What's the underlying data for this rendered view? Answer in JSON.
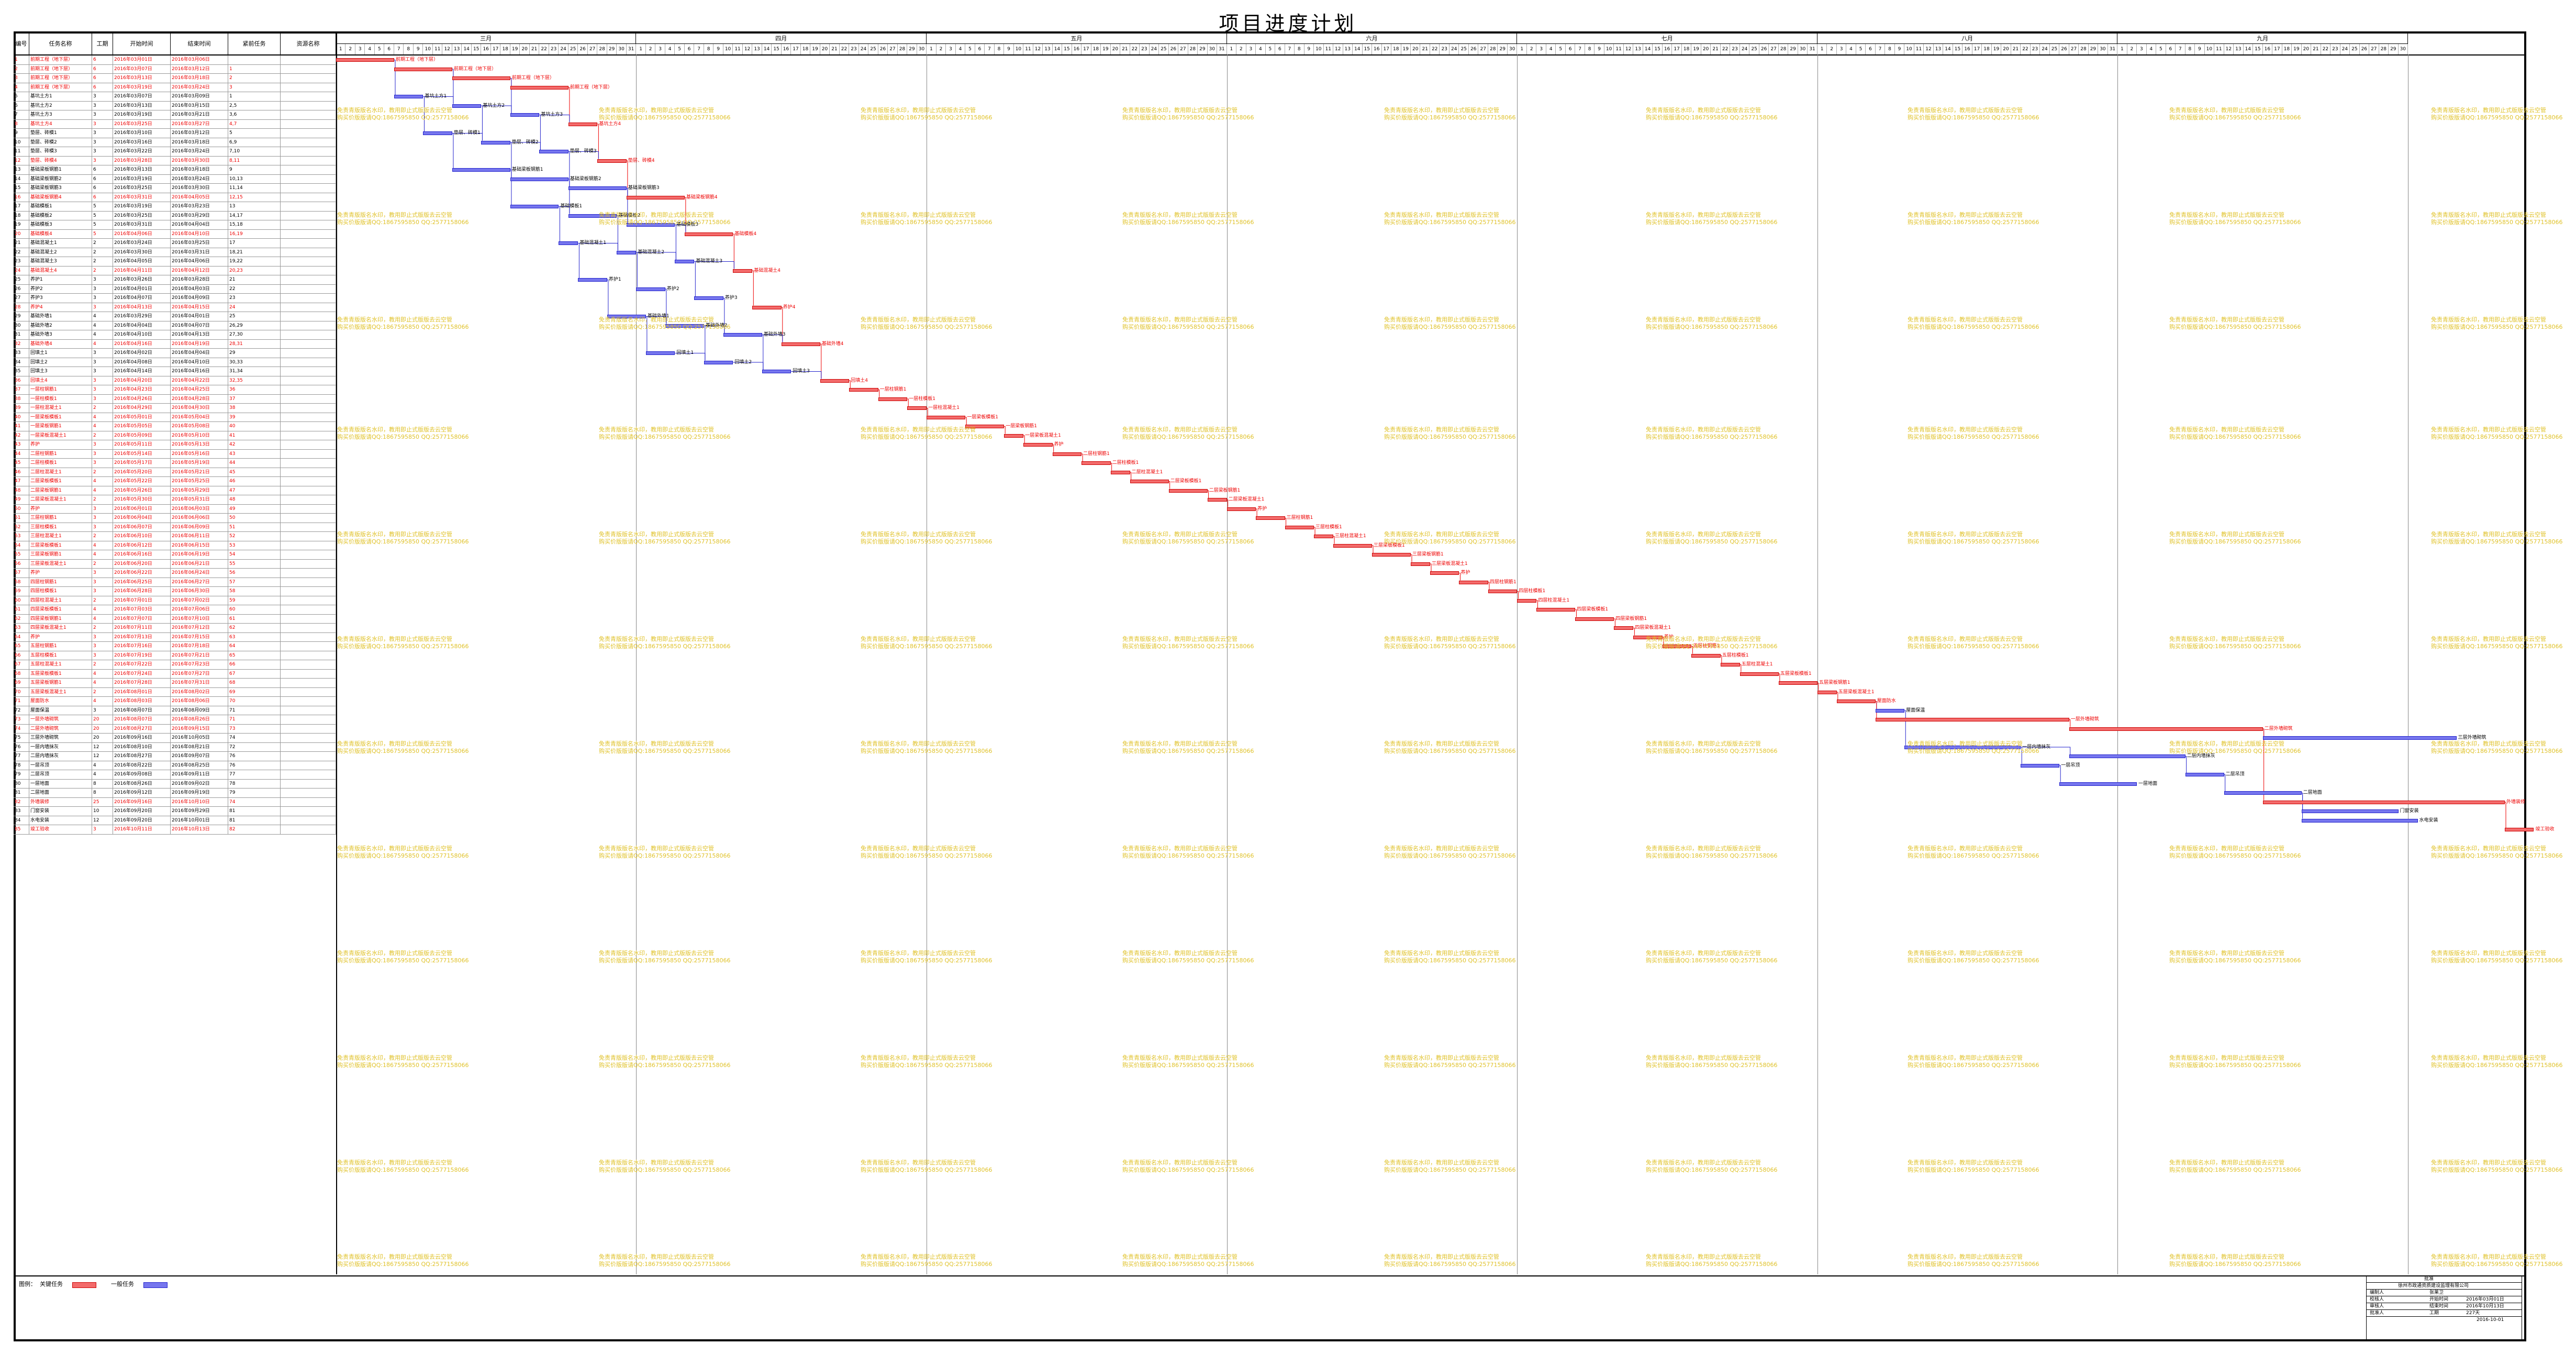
{
  "title": "项目进度计划",
  "columns": [
    "编号",
    "任务名称",
    "工期",
    "开始时间",
    "结束时间",
    "紧前任务",
    "资源名称"
  ],
  "months": [
    "三月",
    "四月",
    "五月",
    "六月",
    "七月",
    "八月",
    "九月"
  ],
  "month_days": [
    31,
    30,
    31,
    30,
    31,
    31,
    30
  ],
  "watermark_line1": "免责青版版名水印，教用即止式版版去云空管",
  "watermark_line2": "购买价版版请QQ:1867595850 QQ:2577158066",
  "tasks": [
    {
      "id": "1",
      "name": "前期工程（地下层）",
      "dur": "6",
      "start": "2016年03月01日",
      "end": "2016年03月06日",
      "pred": "",
      "key": true
    },
    {
      "id": "2",
      "name": "前期工程（地下层）",
      "dur": "6",
      "start": "2016年03月07日",
      "end": "2016年03月12日",
      "pred": "1",
      "key": true
    },
    {
      "id": "3",
      "name": "前期工程（地下层）",
      "dur": "6",
      "start": "2016年03月13日",
      "end": "2016年03月18日",
      "pred": "2",
      "key": true
    },
    {
      "id": "4",
      "name": "前期工程（地下层）",
      "dur": "6",
      "start": "2016年03月19日",
      "end": "2016年03月24日",
      "pred": "3",
      "key": true
    },
    {
      "id": "5",
      "name": "基坑土方1",
      "dur": "3",
      "start": "2016年03月07日",
      "end": "2016年03月09日",
      "pred": "1",
      "key": false
    },
    {
      "id": "6",
      "name": "基坑土方2",
      "dur": "3",
      "start": "2016年03月13日",
      "end": "2016年03月15日",
      "pred": "2,5",
      "key": false
    },
    {
      "id": "7",
      "name": "基坑土方3",
      "dur": "3",
      "start": "2016年03月19日",
      "end": "2016年03月21日",
      "pred": "3,6",
      "key": false
    },
    {
      "id": "8",
      "name": "基坑土方4",
      "dur": "3",
      "start": "2016年03月25日",
      "end": "2016年03月27日",
      "pred": "4,7",
      "key": true
    },
    {
      "id": "9",
      "name": "垫层、砖模1",
      "dur": "3",
      "start": "2016年03月10日",
      "end": "2016年03月12日",
      "pred": "5",
      "key": false
    },
    {
      "id": "10",
      "name": "垫层、砖模2",
      "dur": "3",
      "start": "2016年03月16日",
      "end": "2016年03月18日",
      "pred": "6,9",
      "key": false
    },
    {
      "id": "11",
      "name": "垫层、砖模3",
      "dur": "3",
      "start": "2016年03月22日",
      "end": "2016年03月24日",
      "pred": "7,10",
      "key": false
    },
    {
      "id": "12",
      "name": "垫层、砖模4",
      "dur": "3",
      "start": "2016年03月28日",
      "end": "2016年03月30日",
      "pred": "8,11",
      "key": true
    },
    {
      "id": "13",
      "name": "基础梁板钢筋1",
      "dur": "6",
      "start": "2016年03月13日",
      "end": "2016年03月18日",
      "pred": "9",
      "key": false
    },
    {
      "id": "14",
      "name": "基础梁板钢筋2",
      "dur": "6",
      "start": "2016年03月19日",
      "end": "2016年03月24日",
      "pred": "10,13",
      "key": false
    },
    {
      "id": "15",
      "name": "基础梁板钢筋3",
      "dur": "6",
      "start": "2016年03月25日",
      "end": "2016年03月30日",
      "pred": "11,14",
      "key": false
    },
    {
      "id": "16",
      "name": "基础梁板钢筋4",
      "dur": "6",
      "start": "2016年03月31日",
      "end": "2016年04月05日",
      "pred": "12,15",
      "key": true
    },
    {
      "id": "17",
      "name": "基础模板1",
      "dur": "5",
      "start": "2016年03月19日",
      "end": "2016年03月23日",
      "pred": "13",
      "key": false
    },
    {
      "id": "18",
      "name": "基础模板2",
      "dur": "5",
      "start": "2016年03月25日",
      "end": "2016年03月29日",
      "pred": "14,17",
      "key": false
    },
    {
      "id": "19",
      "name": "基础模板3",
      "dur": "5",
      "start": "2016年03月31日",
      "end": "2016年04月04日",
      "pred": "15,18",
      "key": false
    },
    {
      "id": "20",
      "name": "基础模板4",
      "dur": "5",
      "start": "2016年04月06日",
      "end": "2016年04月10日",
      "pred": "16,19",
      "key": true
    },
    {
      "id": "21",
      "name": "基础混凝土1",
      "dur": "2",
      "start": "2016年03月24日",
      "end": "2016年03月25日",
      "pred": "17",
      "key": false
    },
    {
      "id": "22",
      "name": "基础混凝土2",
      "dur": "2",
      "start": "2016年03月30日",
      "end": "2016年03月31日",
      "pred": "18,21",
      "key": false
    },
    {
      "id": "23",
      "name": "基础混凝土3",
      "dur": "2",
      "start": "2016年04月05日",
      "end": "2016年04月06日",
      "pred": "19,22",
      "key": false
    },
    {
      "id": "24",
      "name": "基础混凝土4",
      "dur": "2",
      "start": "2016年04月11日",
      "end": "2016年04月12日",
      "pred": "20,23",
      "key": true
    },
    {
      "id": "25",
      "name": "养护1",
      "dur": "3",
      "start": "2016年03月26日",
      "end": "2016年03月28日",
      "pred": "21",
      "key": false
    },
    {
      "id": "26",
      "name": "养护2",
      "dur": "3",
      "start": "2016年04月01日",
      "end": "2016年04月03日",
      "pred": "22",
      "key": false
    },
    {
      "id": "27",
      "name": "养护3",
      "dur": "3",
      "start": "2016年04月07日",
      "end": "2016年04月09日",
      "pred": "23",
      "key": false
    },
    {
      "id": "28",
      "name": "养护4",
      "dur": "3",
      "start": "2016年04月13日",
      "end": "2016年04月15日",
      "pred": "24",
      "key": true
    },
    {
      "id": "29",
      "name": "基础外墙1",
      "dur": "4",
      "start": "2016年03月29日",
      "end": "2016年04月01日",
      "pred": "25",
      "key": false
    },
    {
      "id": "30",
      "name": "基础外墙2",
      "dur": "4",
      "start": "2016年04月04日",
      "end": "2016年04月07日",
      "pred": "26,29",
      "key": false
    },
    {
      "id": "31",
      "name": "基础外墙3",
      "dur": "4",
      "start": "2016年04月10日",
      "end": "2016年04月13日",
      "pred": "27,30",
      "key": false
    },
    {
      "id": "32",
      "name": "基础外墙4",
      "dur": "4",
      "start": "2016年04月16日",
      "end": "2016年04月19日",
      "pred": "28,31",
      "key": true
    },
    {
      "id": "33",
      "name": "回填土1",
      "dur": "3",
      "start": "2016年04月02日",
      "end": "2016年04月04日",
      "pred": "29",
      "key": false
    },
    {
      "id": "34",
      "name": "回填土2",
      "dur": "3",
      "start": "2016年04月08日",
      "end": "2016年04月10日",
      "pred": "30,33",
      "key": false
    },
    {
      "id": "35",
      "name": "回填土3",
      "dur": "3",
      "start": "2016年04月14日",
      "end": "2016年04月16日",
      "pred": "31,34",
      "key": false
    },
    {
      "id": "36",
      "name": "回填土4",
      "dur": "3",
      "start": "2016年04月20日",
      "end": "2016年04月22日",
      "pred": "32,35",
      "key": true
    },
    {
      "id": "37",
      "name": "一层柱钢筋1",
      "dur": "3",
      "start": "2016年04月23日",
      "end": "2016年04月25日",
      "pred": "36",
      "key": true
    },
    {
      "id": "38",
      "name": "一层柱模板1",
      "dur": "3",
      "start": "2016年04月26日",
      "end": "2016年04月28日",
      "pred": "37",
      "key": true
    },
    {
      "id": "39",
      "name": "一层柱混凝土1",
      "dur": "2",
      "start": "2016年04月29日",
      "end": "2016年04月30日",
      "pred": "38",
      "key": true
    },
    {
      "id": "40",
      "name": "一层梁板模板1",
      "dur": "4",
      "start": "2016年05月01日",
      "end": "2016年05月04日",
      "pred": "39",
      "key": true
    },
    {
      "id": "41",
      "name": "一层梁板钢筋1",
      "dur": "4",
      "start": "2016年05月05日",
      "end": "2016年05月08日",
      "pred": "40",
      "key": true
    },
    {
      "id": "42",
      "name": "一层梁板混凝土1",
      "dur": "2",
      "start": "2016年05月09日",
      "end": "2016年05月10日",
      "pred": "41",
      "key": true
    },
    {
      "id": "43",
      "name": "养护",
      "dur": "3",
      "start": "2016年05月11日",
      "end": "2016年05月13日",
      "pred": "42",
      "key": true
    },
    {
      "id": "44",
      "name": "二层柱钢筋1",
      "dur": "3",
      "start": "2016年05月14日",
      "end": "2016年05月16日",
      "pred": "43",
      "key": true
    },
    {
      "id": "45",
      "name": "二层柱模板1",
      "dur": "3",
      "start": "2016年05月17日",
      "end": "2016年05月19日",
      "pred": "44",
      "key": true
    },
    {
      "id": "46",
      "name": "二层柱混凝土1",
      "dur": "2",
      "start": "2016年05月20日",
      "end": "2016年05月21日",
      "pred": "45",
      "key": true
    },
    {
      "id": "47",
      "name": "二层梁板模板1",
      "dur": "4",
      "start": "2016年05月22日",
      "end": "2016年05月25日",
      "pred": "46",
      "key": true
    },
    {
      "id": "48",
      "name": "二层梁板钢筋1",
      "dur": "4",
      "start": "2016年05月26日",
      "end": "2016年05月29日",
      "pred": "47",
      "key": true
    },
    {
      "id": "49",
      "name": "二层梁板混凝土1",
      "dur": "2",
      "start": "2016年05月30日",
      "end": "2016年05月31日",
      "pred": "48",
      "key": true
    },
    {
      "id": "50",
      "name": "养护",
      "dur": "3",
      "start": "2016年06月01日",
      "end": "2016年06月03日",
      "pred": "49",
      "key": true
    },
    {
      "id": "51",
      "name": "三层柱钢筋1",
      "dur": "3",
      "start": "2016年06月04日",
      "end": "2016年06月06日",
      "pred": "50",
      "key": true
    },
    {
      "id": "52",
      "name": "三层柱模板1",
      "dur": "3",
      "start": "2016年06月07日",
      "end": "2016年06月09日",
      "pred": "51",
      "key": true
    },
    {
      "id": "53",
      "name": "三层柱混凝土1",
      "dur": "2",
      "start": "2016年06月10日",
      "end": "2016年06月11日",
      "pred": "52",
      "key": true
    },
    {
      "id": "54",
      "name": "三层梁板模板1",
      "dur": "4",
      "start": "2016年06月12日",
      "end": "2016年06月15日",
      "pred": "53",
      "key": true
    },
    {
      "id": "55",
      "name": "三层梁板钢筋1",
      "dur": "4",
      "start": "2016年06月16日",
      "end": "2016年06月19日",
      "pred": "54",
      "key": true
    },
    {
      "id": "56",
      "name": "三层梁板混凝土1",
      "dur": "2",
      "start": "2016年06月20日",
      "end": "2016年06月21日",
      "pred": "55",
      "key": true
    },
    {
      "id": "57",
      "name": "养护",
      "dur": "3",
      "start": "2016年06月22日",
      "end": "2016年06月24日",
      "pred": "56",
      "key": true
    },
    {
      "id": "58",
      "name": "四层柱钢筋1",
      "dur": "3",
      "start": "2016年06月25日",
      "end": "2016年06月27日",
      "pred": "57",
      "key": true
    },
    {
      "id": "59",
      "name": "四层柱模板1",
      "dur": "3",
      "start": "2016年06月28日",
      "end": "2016年06月30日",
      "pred": "58",
      "key": true
    },
    {
      "id": "60",
      "name": "四层柱混凝土1",
      "dur": "2",
      "start": "2016年07月01日",
      "end": "2016年07月02日",
      "pred": "59",
      "key": true
    },
    {
      "id": "61",
      "name": "四层梁板模板1",
      "dur": "4",
      "start": "2016年07月03日",
      "end": "2016年07月06日",
      "pred": "60",
      "key": true
    },
    {
      "id": "62",
      "name": "四层梁板钢筋1",
      "dur": "4",
      "start": "2016年07月07日",
      "end": "2016年07月10日",
      "pred": "61",
      "key": true
    },
    {
      "id": "63",
      "name": "四层梁板混凝土1",
      "dur": "2",
      "start": "2016年07月11日",
      "end": "2016年07月12日",
      "pred": "62",
      "key": true
    },
    {
      "id": "64",
      "name": "养护",
      "dur": "3",
      "start": "2016年07月13日",
      "end": "2016年07月15日",
      "pred": "63",
      "key": true
    },
    {
      "id": "65",
      "name": "五层柱钢筋1",
      "dur": "3",
      "start": "2016年07月16日",
      "end": "2016年07月18日",
      "pred": "64",
      "key": true
    },
    {
      "id": "66",
      "name": "五层柱模板1",
      "dur": "3",
      "start": "2016年07月19日",
      "end": "2016年07月21日",
      "pred": "65",
      "key": true
    },
    {
      "id": "67",
      "name": "五层柱混凝土1",
      "dur": "2",
      "start": "2016年07月22日",
      "end": "2016年07月23日",
      "pred": "66",
      "key": true
    },
    {
      "id": "68",
      "name": "五层梁板模板1",
      "dur": "4",
      "start": "2016年07月24日",
      "end": "2016年07月27日",
      "pred": "67",
      "key": true
    },
    {
      "id": "69",
      "name": "五层梁板钢筋1",
      "dur": "4",
      "start": "2016年07月28日",
      "end": "2016年07月31日",
      "pred": "68",
      "key": true
    },
    {
      "id": "70",
      "name": "五层梁板混凝土1",
      "dur": "2",
      "start": "2016年08月01日",
      "end": "2016年08月02日",
      "pred": "69",
      "key": true
    },
    {
      "id": "71",
      "name": "屋面防水",
      "dur": "4",
      "start": "2016年08月03日",
      "end": "2016年08月06日",
      "pred": "70",
      "key": true
    },
    {
      "id": "72",
      "name": "屋面保温",
      "dur": "3",
      "start": "2016年08月07日",
      "end": "2016年08月09日",
      "pred": "71",
      "key": false
    },
    {
      "id": "73",
      "name": "一层外墙砌筑",
      "dur": "20",
      "start": "2016年08月07日",
      "end": "2016年08月26日",
      "pred": "71",
      "key": true
    },
    {
      "id": "74",
      "name": "二层外墙砌筑",
      "dur": "20",
      "start": "2016年08月27日",
      "end": "2016年09月15日",
      "pred": "73",
      "key": true
    },
    {
      "id": "75",
      "name": "三层外墙砌筑",
      "dur": "20",
      "start": "2016年09月16日",
      "end": "2016年10月05日",
      "pred": "74",
      "key": false
    },
    {
      "id": "76",
      "name": "一层内墙抹灰",
      "dur": "12",
      "start": "2016年08月10日",
      "end": "2016年08月21日",
      "pred": "72",
      "key": false
    },
    {
      "id": "77",
      "name": "二层内墙抹灰",
      "dur": "12",
      "start": "2016年08月27日",
      "end": "2016年09月07日",
      "pred": "76",
      "key": false
    },
    {
      "id": "78",
      "name": "一层吊顶",
      "dur": "4",
      "start": "2016年08月22日",
      "end": "2016年08月25日",
      "pred": "76",
      "key": false
    },
    {
      "id": "79",
      "name": "二层吊顶",
      "dur": "4",
      "start": "2016年09月08日",
      "end": "2016年09月11日",
      "pred": "77",
      "key": false
    },
    {
      "id": "80",
      "name": "一层地面",
      "dur": "8",
      "start": "2016年08月26日",
      "end": "2016年09月02日",
      "pred": "78",
      "key": false
    },
    {
      "id": "81",
      "name": "二层地面",
      "dur": "8",
      "start": "2016年09月12日",
      "end": "2016年09月19日",
      "pred": "79",
      "key": false
    },
    {
      "id": "82",
      "name": "外墙装修",
      "dur": "25",
      "start": "2016年09月16日",
      "end": "2016年10月10日",
      "pred": "74",
      "key": true
    },
    {
      "id": "83",
      "name": "门窗安装",
      "dur": "10",
      "start": "2016年09月20日",
      "end": "2016年09月29日",
      "pred": "81",
      "key": false
    },
    {
      "id": "84",
      "name": "水电安装",
      "dur": "12",
      "start": "2016年09月20日",
      "end": "2016年10月01日",
      "pred": "81",
      "key": false
    },
    {
      "id": "85",
      "name": "竣工验收",
      "dur": "3",
      "start": "2016年10月11日",
      "end": "2016年10月13日",
      "pred": "82",
      "key": true
    }
  ],
  "legend": {
    "label": "图例：",
    "key": "关键任务",
    "normal": "一般任务"
  },
  "info": {
    "row1": "批准",
    "row2": "徐州市政通资质建设监理有限公司",
    "made_by": "编制人",
    "made_by_val": "张莱卫",
    "check": "校核人",
    "start_label": "开始时间",
    "start_val": "2016年03月01日",
    "review": "审核人",
    "end_label": "结束时间",
    "end_val": "2016年10月13日",
    "approve": "批准人",
    "dur_label": "工期",
    "dur_val": "227天",
    "date": "2016-10-01"
  },
  "colors": {
    "key_fill": "#f36b6b",
    "key_border": "#cc0000",
    "normal_fill": "#7676ee",
    "normal_border": "#2222cc",
    "watermark": "#e0c22a"
  }
}
